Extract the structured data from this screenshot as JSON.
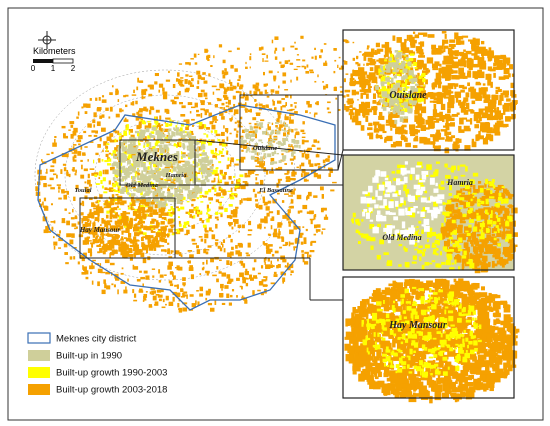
{
  "scale_bar": {
    "title": "Kilometers",
    "ticks": [
      "0",
      "1",
      "2"
    ]
  },
  "places": [
    {
      "label": "Meknes"
    },
    {
      "label": "Hamria"
    },
    {
      "label": "Old Medina"
    },
    {
      "label": "Toulal"
    },
    {
      "label": "Hay Mansour"
    },
    {
      "label": "Ouislane"
    },
    {
      "label": "El Bassatine"
    }
  ],
  "insets": [
    {
      "label": "Ouislane"
    },
    {
      "label": "Hamria"
    },
    {
      "label": "Old Medina"
    },
    {
      "label": "Hay Mansour"
    }
  ],
  "legend": [
    {
      "label": "Meknes city district"
    },
    {
      "label": "Built-up in 1990"
    },
    {
      "label": "Built-up growth 1990-2003"
    },
    {
      "label": "Built-up growth 2003-2018"
    }
  ]
}
